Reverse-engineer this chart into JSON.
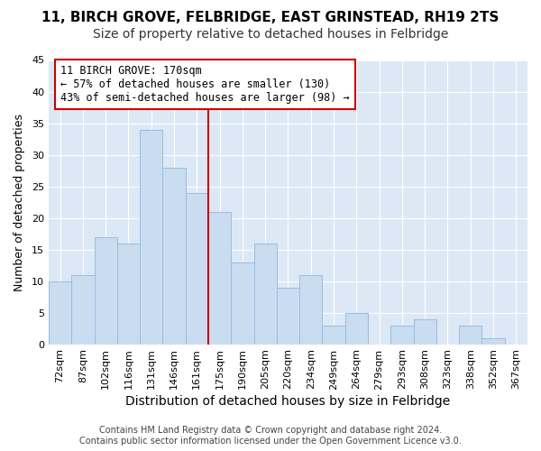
{
  "title1": "11, BIRCH GROVE, FELBRIDGE, EAST GRINSTEAD, RH19 2TS",
  "title2": "Size of property relative to detached houses in Felbridge",
  "xlabel": "Distribution of detached houses by size in Felbridge",
  "ylabel": "Number of detached properties",
  "categories": [
    "72sqm",
    "87sqm",
    "102sqm",
    "116sqm",
    "131sqm",
    "146sqm",
    "161sqm",
    "175sqm",
    "190sqm",
    "205sqm",
    "220sqm",
    "234sqm",
    "249sqm",
    "264sqm",
    "279sqm",
    "293sqm",
    "308sqm",
    "323sqm",
    "338sqm",
    "352sqm",
    "367sqm"
  ],
  "values": [
    10,
    11,
    17,
    16,
    34,
    28,
    24,
    21,
    13,
    16,
    9,
    11,
    3,
    5,
    0,
    3,
    4,
    0,
    3,
    1,
    0
  ],
  "bar_color": "#c9dcf0",
  "bar_edgecolor": "#9bbde0",
  "vline_color": "#cc0000",
  "vline_x": 6.5,
  "annotation_text": "11 BIRCH GROVE: 170sqm\n← 57% of detached houses are smaller (130)\n43% of semi-detached houses are larger (98) →",
  "annotation_box_edgecolor": "#cc0000",
  "annotation_box_facecolor": "#ffffff",
  "ylim": [
    0,
    45
  ],
  "yticks": [
    0,
    5,
    10,
    15,
    20,
    25,
    30,
    35,
    40,
    45
  ],
  "footnote_line1": "Contains HM Land Registry data © Crown copyright and database right 2024.",
  "footnote_line2": "Contains public sector information licensed under the Open Government Licence v3.0.",
  "fig_bg_color": "#ffffff",
  "plot_bg_color": "#dce8f5",
  "grid_color": "#ffffff",
  "title1_fontsize": 11,
  "title2_fontsize": 10,
  "xlabel_fontsize": 10,
  "ylabel_fontsize": 9,
  "tick_fontsize": 8,
  "annotation_fontsize": 8.5,
  "footnote_fontsize": 7
}
